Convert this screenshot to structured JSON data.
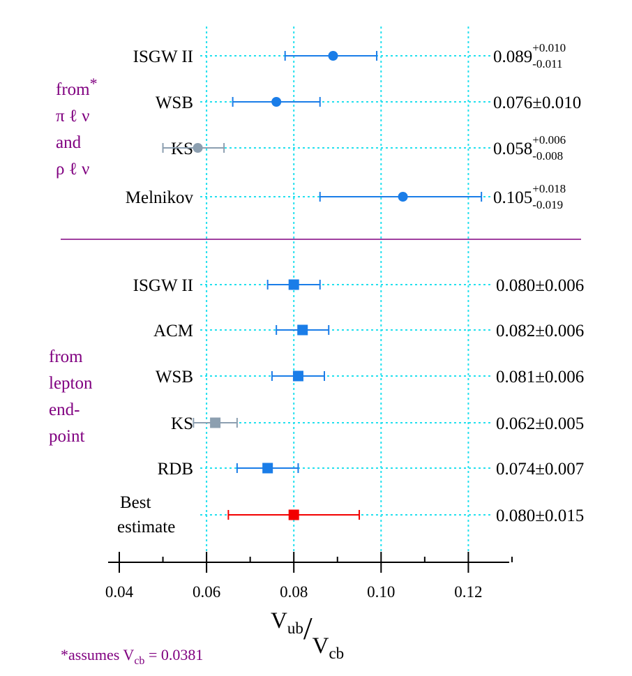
{
  "chart_data": {
    "type": "scatter",
    "subtype": "forest-plot-with-error-bars",
    "x_axis": {
      "ticks": [
        0.04,
        0.06,
        0.08,
        0.1,
        0.12
      ],
      "tick_labels": [
        "0.04",
        "0.06",
        "0.08",
        "0.10",
        "0.12"
      ],
      "range": [
        0.04,
        0.13
      ],
      "title_main": "V",
      "title_main_sub": "ub",
      "title_slash": "/",
      "title_denom": "V",
      "title_denom_sub": "cb"
    },
    "grid_x": [
      0.06,
      0.08,
      0.1,
      0.12
    ],
    "groups": [
      {
        "name": "pi-rho-l-nu",
        "label_lines": [
          "from*",
          "π ℓ ν",
          "and",
          "ρ ℓ ν"
        ],
        "marker": "circle",
        "entries": [
          {
            "model": "ISGW II",
            "value": 0.089,
            "err_plus": 0.01,
            "err_minus": 0.011,
            "value_text": "0.089",
            "plus_text": "+0.010",
            "minus_text": "-0.011",
            "color": "#1a7de8"
          },
          {
            "model": "WSB",
            "value": 0.076,
            "err_plus": 0.01,
            "err_minus": 0.01,
            "value_text": "0.076±0.010",
            "color": "#1a7de8"
          },
          {
            "model": "KS",
            "value": 0.058,
            "err_plus": 0.006,
            "err_minus": 0.008,
            "value_text": "0.058",
            "plus_text": "+0.006",
            "minus_text": "-0.008",
            "color": "#8c9fb0"
          },
          {
            "model": "Melnikov",
            "value": 0.105,
            "err_plus": 0.018,
            "err_minus": 0.019,
            "value_text": "0.105",
            "plus_text": "+0.018",
            "minus_text": "-0.019",
            "color": "#1a7de8"
          }
        ]
      },
      {
        "name": "lepton-endpoint",
        "label_lines": [
          "from",
          "lepton",
          "end-",
          "point"
        ],
        "marker": "square",
        "entries": [
          {
            "model": "ISGW II",
            "value": 0.08,
            "err_plus": 0.006,
            "err_minus": 0.006,
            "value_text": "0.080±0.006",
            "color": "#1a7de8"
          },
          {
            "model": "ACM",
            "value": 0.082,
            "err_plus": 0.006,
            "err_minus": 0.006,
            "value_text": "0.082±0.006",
            "color": "#1a7de8"
          },
          {
            "model": "WSB",
            "value": 0.081,
            "err_plus": 0.006,
            "err_minus": 0.006,
            "value_text": "0.081±0.006",
            "color": "#1a7de8"
          },
          {
            "model": "KS",
            "value": 0.062,
            "err_plus": 0.005,
            "err_minus": 0.005,
            "value_text": "0.062±0.005",
            "color": "#8c9fb0"
          },
          {
            "model": "RDB",
            "value": 0.074,
            "err_plus": 0.007,
            "err_minus": 0.007,
            "value_text": "0.074±0.007",
            "color": "#1a7de8"
          },
          {
            "model_lines": [
              "Best",
              "estimate"
            ],
            "value": 0.08,
            "err_plus": 0.015,
            "err_minus": 0.015,
            "value_text": "0.080±0.015",
            "color": "#f20000",
            "highlight": true
          }
        ]
      }
    ],
    "footnote": {
      "prefix": "*assumes V",
      "sub": "cb",
      "suffix": " = 0.0381"
    }
  },
  "colors": {
    "grid": "#22e0ee",
    "separator": "#800080",
    "purple_text": "#800080",
    "axis": "#000000"
  }
}
